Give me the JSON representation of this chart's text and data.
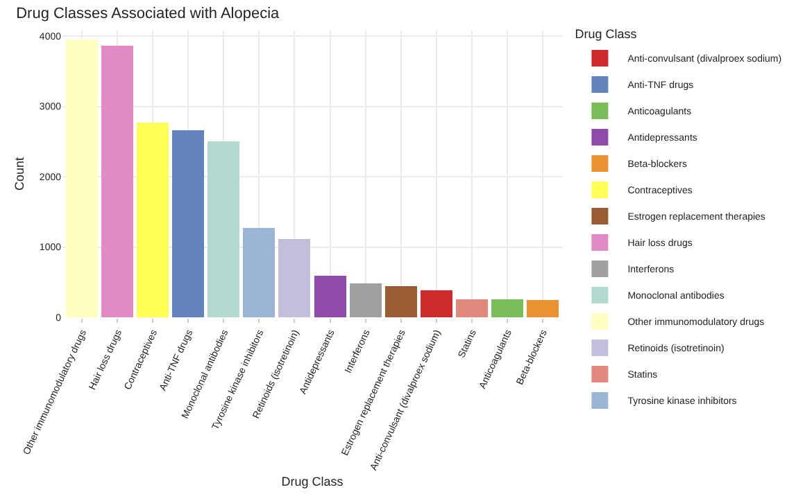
{
  "chart_data": {
    "type": "bar",
    "title": "Drug Classes Associated with Alopecia",
    "xlabel": "Drug Class",
    "ylabel": "Count",
    "legend_title": "Drug Class",
    "stacked": true,
    "categories": [
      "Other immunomodulatory drugs",
      "Hair loss drugs",
      "Contraceptives",
      "Anti-TNF drugs",
      "Monoclonal antibodies",
      "Tyrosine kinase inhibitors",
      "Retinoids (isotretinoin)",
      "Antidepressants",
      "Interferons",
      "Estrogen replacement therapies",
      "Anti-convulsant (divalproex sodium)",
      "Statins",
      "Anticoagulants",
      "Beta-blockers"
    ],
    "series": [
      {
        "name": "Anti-convulsant (divalproex sodium)",
        "color": "#cd2a2e",
        "values": [
          null,
          null,
          null,
          null,
          null,
          null,
          null,
          null,
          null,
          null,
          380,
          null,
          null,
          null
        ]
      },
      {
        "name": "Anti-TNF drugs",
        "color": "#6383bd",
        "values": [
          null,
          null,
          null,
          2660,
          null,
          null,
          null,
          null,
          null,
          null,
          null,
          null,
          null,
          null
        ]
      },
      {
        "name": "Anticoagulants",
        "color": "#7bbb5a",
        "values": [
          null,
          null,
          null,
          null,
          null,
          null,
          null,
          null,
          null,
          null,
          null,
          null,
          260,
          null
        ]
      },
      {
        "name": "Antidepressants",
        "color": "#8e4ba7",
        "values": [
          null,
          null,
          null,
          null,
          null,
          null,
          null,
          590,
          null,
          null,
          null,
          null,
          null,
          null
        ]
      },
      {
        "name": "Beta-blockers",
        "color": "#ea9131",
        "values": [
          null,
          null,
          null,
          null,
          null,
          null,
          null,
          null,
          null,
          null,
          null,
          null,
          null,
          250
        ]
      },
      {
        "name": "Contraceptives",
        "color": "#ffff55",
        "values": [
          null,
          null,
          2770,
          null,
          null,
          null,
          null,
          null,
          null,
          null,
          null,
          null,
          null,
          null
        ]
      },
      {
        "name": "Estrogen replacement therapies",
        "color": "#9a5c33",
        "values": [
          null,
          null,
          null,
          null,
          null,
          null,
          null,
          null,
          null,
          440,
          null,
          null,
          null,
          null
        ]
      },
      {
        "name": "Hair loss drugs",
        "color": "#e08bc4",
        "values": [
          null,
          3860,
          null,
          null,
          null,
          null,
          null,
          null,
          null,
          null,
          null,
          null,
          null,
          null
        ]
      },
      {
        "name": "Interferons",
        "color": "#a0a0a0",
        "values": [
          null,
          null,
          null,
          null,
          null,
          null,
          null,
          null,
          480,
          null,
          null,
          null,
          null,
          null
        ]
      },
      {
        "name": "Monoclonal antibodies",
        "color": "#b1d9cf",
        "values": [
          null,
          null,
          null,
          null,
          2500,
          null,
          null,
          null,
          null,
          null,
          null,
          null,
          null,
          null
        ]
      },
      {
        "name": "Other immunomodulatory drugs",
        "color": "#ffffc0",
        "values": [
          3950,
          null,
          null,
          null,
          null,
          null,
          null,
          null,
          null,
          null,
          null,
          null,
          null,
          null
        ]
      },
      {
        "name": "Retinoids (isotretinoin)",
        "color": "#c4bedd",
        "values": [
          null,
          null,
          null,
          null,
          null,
          null,
          1110,
          null,
          null,
          null,
          null,
          null,
          null,
          null
        ]
      },
      {
        "name": "Statins",
        "color": "#e2887c",
        "values": [
          null,
          null,
          null,
          null,
          null,
          null,
          null,
          null,
          null,
          null,
          null,
          260,
          null,
          null
        ]
      },
      {
        "name": "Tyrosine kinase inhibitors",
        "color": "#9cb5d6",
        "values": [
          null,
          null,
          null,
          null,
          null,
          1270,
          null,
          null,
          null,
          null,
          null,
          null,
          null,
          null
        ]
      }
    ],
    "ylim": [
      0,
      4080
    ],
    "yticks": [
      0,
      1000,
      2000,
      3000,
      4000
    ],
    "grid": true,
    "legend": "right"
  }
}
